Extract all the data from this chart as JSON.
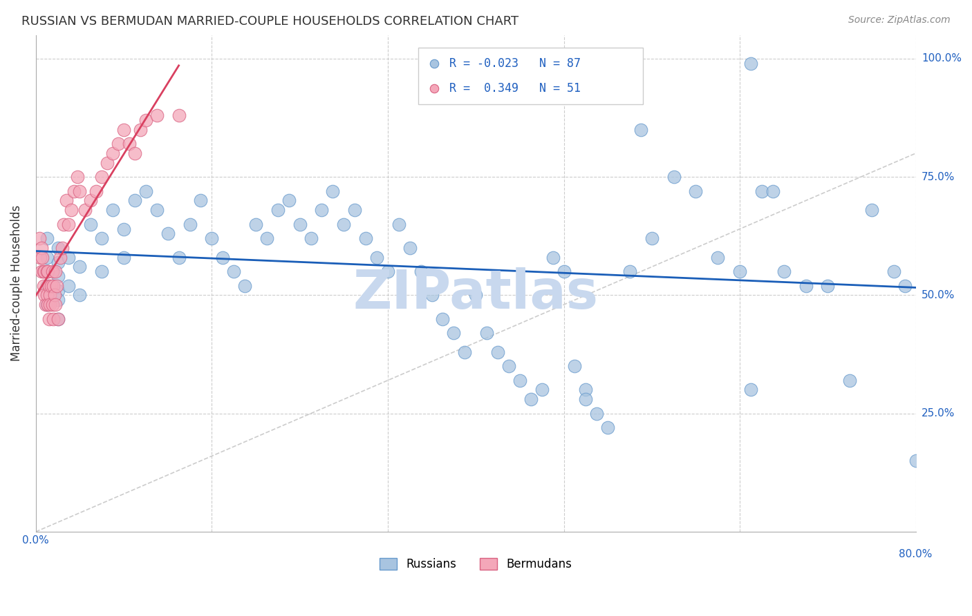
{
  "title": "RUSSIAN VS BERMUDAN MARRIED-COUPLE HOUSEHOLDS CORRELATION CHART",
  "source": "Source: ZipAtlas.com",
  "ylabel": "Married-couple Households",
  "russian_color": "#a8c4e0",
  "russian_edge": "#6699cc",
  "bermudan_color": "#f4a7b9",
  "bermudan_edge": "#d96080",
  "russian_trend_color": "#1a5eb8",
  "bermudan_trend_color": "#d94060",
  "diagonal_color": "#cccccc",
  "grid_color": "#cccccc",
  "title_color": "#333333",
  "axis_label_color": "#2060c0",
  "watermark_color": "#c8d8ee",
  "xlim": [
    0.0,
    0.8
  ],
  "ylim": [
    0.0,
    1.05
  ],
  "russian_x": [
    0.01,
    0.01,
    0.01,
    0.01,
    0.01,
    0.02,
    0.02,
    0.02,
    0.02,
    0.02,
    0.02,
    0.03,
    0.03,
    0.04,
    0.04,
    0.05,
    0.06,
    0.06,
    0.07,
    0.08,
    0.08,
    0.09,
    0.1,
    0.11,
    0.12,
    0.13,
    0.14,
    0.15,
    0.16,
    0.17,
    0.18,
    0.19,
    0.2,
    0.21,
    0.22,
    0.23,
    0.24,
    0.25,
    0.26,
    0.27,
    0.28,
    0.29,
    0.3,
    0.31,
    0.32,
    0.33,
    0.34,
    0.35,
    0.36,
    0.37,
    0.38,
    0.39,
    0.4,
    0.41,
    0.42,
    0.43,
    0.44,
    0.45,
    0.46,
    0.47,
    0.48,
    0.49,
    0.5,
    0.5,
    0.51,
    0.52,
    0.54,
    0.56,
    0.58,
    0.6,
    0.62,
    0.64,
    0.65,
    0.66,
    0.68,
    0.7,
    0.72,
    0.74,
    0.76,
    0.78,
    0.79,
    0.8,
    0.65,
    0.5,
    0.5,
    0.67,
    0.55
  ],
  "russian_y": [
    0.62,
    0.58,
    0.55,
    0.52,
    0.48,
    0.6,
    0.57,
    0.54,
    0.51,
    0.49,
    0.45,
    0.58,
    0.52,
    0.56,
    0.5,
    0.65,
    0.62,
    0.55,
    0.68,
    0.64,
    0.58,
    0.7,
    0.72,
    0.68,
    0.63,
    0.58,
    0.65,
    0.7,
    0.62,
    0.58,
    0.55,
    0.52,
    0.65,
    0.62,
    0.68,
    0.7,
    0.65,
    0.62,
    0.68,
    0.72,
    0.65,
    0.68,
    0.62,
    0.58,
    0.55,
    0.65,
    0.6,
    0.55,
    0.5,
    0.45,
    0.42,
    0.38,
    0.5,
    0.42,
    0.38,
    0.35,
    0.32,
    0.28,
    0.3,
    0.58,
    0.55,
    0.35,
    0.3,
    0.28,
    0.25,
    0.22,
    0.55,
    0.62,
    0.75,
    0.72,
    0.58,
    0.55,
    0.3,
    0.72,
    0.55,
    0.52,
    0.52,
    0.32,
    0.68,
    0.55,
    0.52,
    0.15,
    0.99,
    0.99,
    0.99,
    0.72,
    0.85
  ],
  "bermudan_x": [
    0.003,
    0.004,
    0.005,
    0.005,
    0.006,
    0.007,
    0.007,
    0.008,
    0.008,
    0.009,
    0.01,
    0.01,
    0.011,
    0.011,
    0.012,
    0.012,
    0.013,
    0.013,
    0.014,
    0.015,
    0.015,
    0.016,
    0.016,
    0.017,
    0.018,
    0.018,
    0.019,
    0.02,
    0.022,
    0.024,
    0.025,
    0.028,
    0.03,
    0.032,
    0.035,
    0.038,
    0.04,
    0.045,
    0.05,
    0.055,
    0.06,
    0.065,
    0.07,
    0.075,
    0.08,
    0.085,
    0.09,
    0.095,
    0.1,
    0.11,
    0.13
  ],
  "bermudan_y": [
    0.62,
    0.58,
    0.6,
    0.55,
    0.58,
    0.52,
    0.55,
    0.5,
    0.55,
    0.48,
    0.55,
    0.5,
    0.55,
    0.48,
    0.52,
    0.45,
    0.5,
    0.48,
    0.52,
    0.55,
    0.48,
    0.52,
    0.45,
    0.5,
    0.55,
    0.48,
    0.52,
    0.45,
    0.58,
    0.6,
    0.65,
    0.7,
    0.65,
    0.68,
    0.72,
    0.75,
    0.72,
    0.68,
    0.7,
    0.72,
    0.75,
    0.78,
    0.8,
    0.82,
    0.85,
    0.82,
    0.8,
    0.85,
    0.87,
    0.88,
    0.88
  ]
}
